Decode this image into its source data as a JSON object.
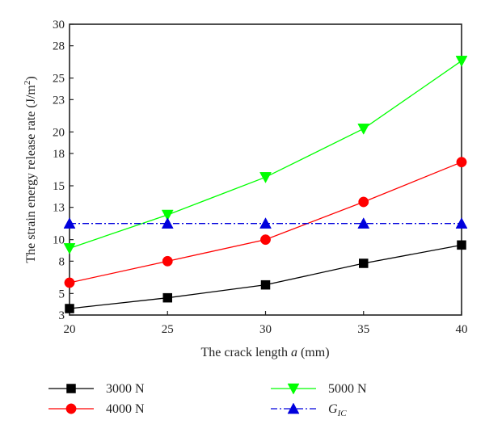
{
  "chart_data": {
    "type": "line",
    "xlabel_prefix": "The crack length ",
    "xlabel_var": "a",
    "xlabel_suffix": " (mm)",
    "ylabel": "The strain energy release rate (J/m",
    "ylabel_sup": "2",
    "ylabel_close": ")",
    "xlim": [
      20,
      40
    ],
    "ylim": [
      3,
      30
    ],
    "x_ticks": [
      20,
      25,
      30,
      35,
      40
    ],
    "y_ticks": [
      3,
      5,
      8,
      10,
      13,
      15,
      18,
      20,
      23,
      25,
      28,
      30
    ],
    "y_tick_labels": [
      "3",
      "5",
      "8",
      "10",
      "13",
      "15",
      "18",
      "20",
      "23",
      "25",
      "28",
      "30"
    ],
    "x": [
      20,
      25,
      30,
      35,
      40
    ],
    "series": [
      {
        "name": "3000 N",
        "values": [
          3.6,
          4.6,
          5.8,
          7.8,
          9.5
        ],
        "color": "#000000",
        "marker": "square",
        "dash": ""
      },
      {
        "name": "4000 N",
        "values": [
          6.0,
          8.0,
          10.0,
          13.5,
          17.2
        ],
        "color": "#ff0000",
        "marker": "circle",
        "dash": ""
      },
      {
        "name": "5000 N",
        "values": [
          9.2,
          12.3,
          15.8,
          20.3,
          26.6
        ],
        "color": "#00ff00",
        "marker": "triangle-down",
        "dash": ""
      },
      {
        "name": "G",
        "name_sub": "IC",
        "values": [
          11.5,
          11.5,
          11.5,
          11.5,
          11.5
        ],
        "color": "#0000dd",
        "marker": "triangle-up",
        "dash": "8,3,2,3"
      }
    ],
    "legend_position": "bottom"
  }
}
